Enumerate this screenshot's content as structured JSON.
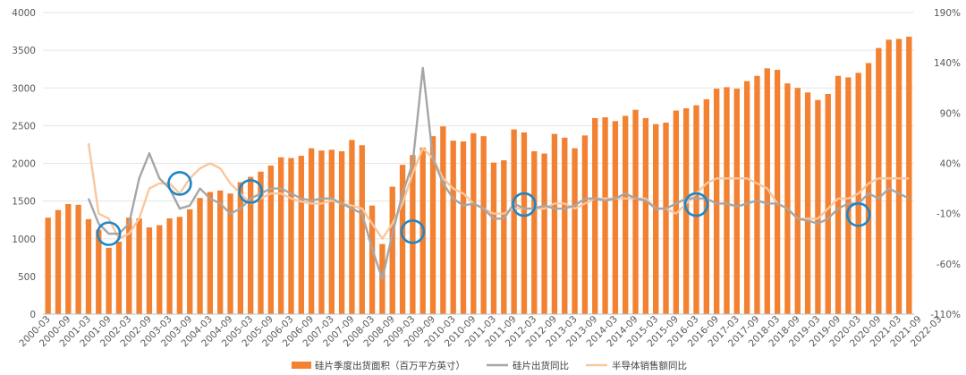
{
  "chart_data": {
    "type": "bar+line",
    "title": "",
    "colors": {
      "bars": "#F28131",
      "line_wafer": "#A6A6A6",
      "line_semi": "#F9C79E",
      "circles": "#1F86C6",
      "grid": "#E6E6E6"
    },
    "left_axis": {
      "min": 0,
      "max": 4000,
      "ticks": [
        "0",
        "500",
        "1000",
        "1500",
        "2000",
        "2500",
        "3000",
        "3500",
        "4000"
      ]
    },
    "right_axis": {
      "min": -110,
      "max": 190,
      "ticks": [
        "-110%",
        "-60%",
        "-10%",
        "40%",
        "90%",
        "140%",
        "190%"
      ]
    },
    "x_tick_labels": [
      "2000-03",
      "2000-09",
      "2001-03",
      "2001-09",
      "2002-03",
      "2002-09",
      "2003-03",
      "2003-09",
      "2004-03",
      "2004-09",
      "2005-03",
      "2005-09",
      "2006-03",
      "2006-09",
      "2007-03",
      "2007-09",
      "2008-03",
      "2008-09",
      "2009-03",
      "2009-09",
      "2010-03",
      "2010-09",
      "2011-03",
      "2011-09",
      "2012-03",
      "2012-09",
      "2013-03",
      "2013-09",
      "2014-03",
      "2014-09",
      "2015-03",
      "2015-09",
      "2016-03",
      "2016-09",
      "2017-03",
      "2017-09",
      "2018-03",
      "2018-09",
      "2019-03",
      "2019-09",
      "2020-03",
      "2020-09",
      "2021-03",
      "2021-09",
      "2022-03"
    ],
    "series": [
      {
        "name": "硅片季度出货面积（百万平方英寸）",
        "kind": "bar",
        "axis": "left",
        "values": [
          1280,
          1380,
          1460,
          1450,
          1260,
          1120,
          880,
          960,
          1280,
          1270,
          1150,
          1180,
          1270,
          1290,
          1390,
          1540,
          1620,
          1640,
          1600,
          1750,
          1820,
          1890,
          1970,
          2080,
          2070,
          2100,
          2200,
          2170,
          2180,
          2160,
          2310,
          2240,
          1440,
          930,
          1690,
          1980,
          2110,
          2210,
          2360,
          2490,
          2300,
          2290,
          2400,
          2360,
          2010,
          2040,
          2450,
          2410,
          2160,
          2130,
          2390,
          2340,
          2200,
          2370,
          2600,
          2610,
          2560,
          2630,
          2710,
          2600,
          2520,
          2540,
          2700,
          2730,
          2770,
          2850,
          2990,
          3010,
          2990,
          3090,
          3160,
          3260,
          3240,
          3060,
          3000,
          2940,
          2840,
          2920,
          3160,
          3140,
          3200,
          3330,
          3530,
          3640,
          3650,
          3680
        ]
      },
      {
        "name": "硅片出货同比",
        "kind": "line",
        "axis": "right",
        "values": [
          null,
          null,
          null,
          null,
          5,
          -20,
          -30,
          -30,
          -20,
          25,
          50,
          25,
          15,
          -5,
          -2,
          15,
          5,
          0,
          -10,
          -5,
          5,
          10,
          15,
          15,
          10,
          5,
          3,
          5,
          5,
          0,
          -5,
          -10,
          -45,
          -75,
          -30,
          10,
          40,
          135,
          45,
          20,
          5,
          -2,
          0,
          -5,
          -15,
          -15,
          0,
          -5,
          -5,
          -2,
          -5,
          -5,
          -2,
          5,
          5,
          3,
          5,
          10,
          5,
          3,
          -5,
          -5,
          0,
          5,
          5,
          5,
          0,
          0,
          -3,
          0,
          3,
          0,
          0,
          -5,
          -15,
          -17,
          -20,
          -15,
          -5,
          0,
          0,
          10,
          5,
          15,
          10,
          5
        ]
      },
      {
        "name": "半导体销售额同比",
        "kind": "line",
        "axis": "right",
        "values": [
          null,
          null,
          null,
          null,
          60,
          -10,
          -15,
          -35,
          -30,
          -15,
          15,
          20,
          20,
          10,
          25,
          35,
          40,
          35,
          20,
          10,
          0,
          5,
          10,
          10,
          5,
          2,
          0,
          0,
          3,
          0,
          -2,
          -5,
          -20,
          -35,
          -20,
          0,
          30,
          55,
          45,
          25,
          15,
          10,
          0,
          -5,
          -10,
          -10,
          -5,
          -5,
          -5,
          -5,
          0,
          0,
          -5,
          0,
          5,
          5,
          5,
          5,
          5,
          5,
          -5,
          -5,
          -10,
          0,
          10,
          20,
          25,
          25,
          25,
          25,
          20,
          15,
          0,
          -5,
          -15,
          -15,
          -15,
          -5,
          5,
          5,
          10,
          20,
          25,
          25,
          25,
          25
        ]
      }
    ],
    "legend": {
      "position": "bottom",
      "entries": [
        "硅片季度出货面积（百万平方英寸）",
        "硅片出货同比",
        "半导体销售额同比"
      ]
    },
    "annotations": [
      {
        "shape": "circle",
        "at_bar": 6,
        "axis": "right",
        "value": -30
      },
      {
        "shape": "circle",
        "at_bar": 13,
        "axis": "right",
        "value": 20
      },
      {
        "shape": "circle",
        "at_bar": 20,
        "axis": "right",
        "value": 12
      },
      {
        "shape": "circle",
        "at_bar": 36,
        "axis": "right",
        "value": -28
      },
      {
        "shape": "circle",
        "at_bar": 47,
        "axis": "right",
        "value": -1
      },
      {
        "shape": "circle",
        "at_bar": 64,
        "axis": "right",
        "value": -1
      },
      {
        "shape": "circle",
        "at_bar": 80,
        "axis": "right",
        "value": -11
      }
    ]
  }
}
